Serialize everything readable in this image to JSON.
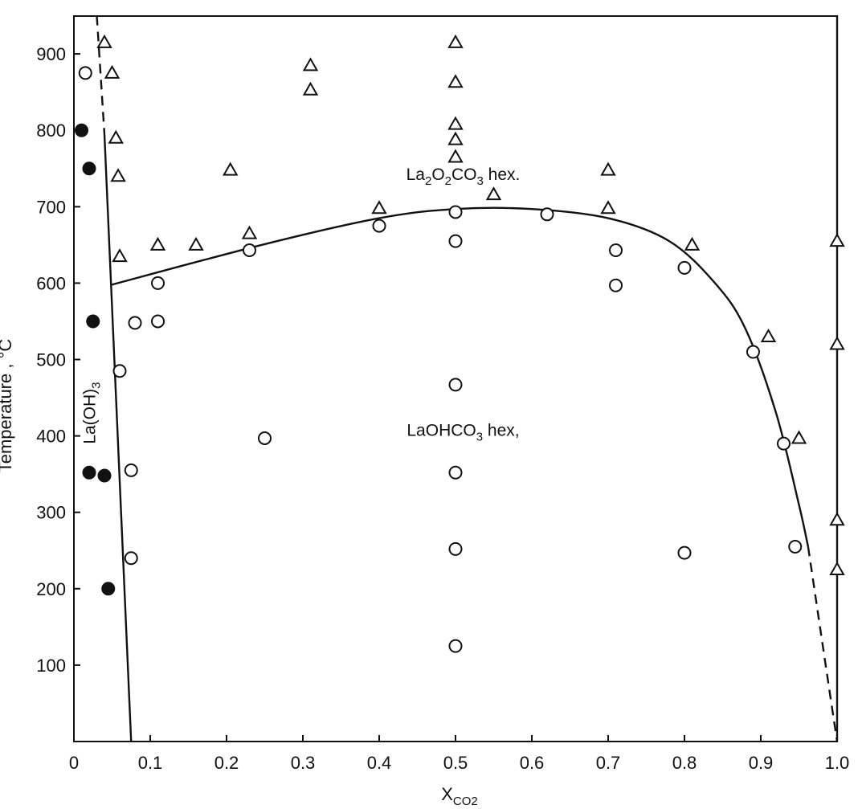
{
  "chart_data": {
    "type": "scatter",
    "xlabel": "X",
    "xlabel_sub": "CO2",
    "ylabel": "Temperature , °C",
    "xlim": [
      0,
      1.0
    ],
    "ylim": [
      0,
      950
    ],
    "x_ticks": [
      "0",
      "0.1",
      "0.2",
      "0.3",
      "0.4",
      "0.5",
      "0.6",
      "0.7",
      "0.8",
      "0.9",
      "1.0"
    ],
    "y_ticks": [
      "100",
      "200",
      "300",
      "400",
      "500",
      "600",
      "700",
      "800",
      "900"
    ],
    "grid": false,
    "annotations": [
      {
        "text_parts": [
          "La",
          "2",
          "O",
          "2",
          "CO",
          "3",
          " hex."
        ],
        "x": 0.51,
        "y": 735
      },
      {
        "text_parts": [
          "LaOHCO",
          "3",
          "  hex,"
        ],
        "x": 0.51,
        "y": 400
      },
      {
        "text_parts": [
          "La(OH)",
          "3"
        ],
        "x": 0.028,
        "y": 430,
        "rotation": -90
      }
    ],
    "series": [
      {
        "marker": "open-triangle",
        "points": [
          [
            0.04,
            915
          ],
          [
            0.05,
            875
          ],
          [
            0.055,
            790
          ],
          [
            0.058,
            740
          ],
          [
            0.06,
            635
          ],
          [
            0.11,
            650
          ],
          [
            0.16,
            650
          ],
          [
            0.205,
            748
          ],
          [
            0.23,
            665
          ],
          [
            0.31,
            885
          ],
          [
            0.31,
            853
          ],
          [
            0.4,
            698
          ],
          [
            0.5,
            915
          ],
          [
            0.5,
            863
          ],
          [
            0.5,
            808
          ],
          [
            0.5,
            788
          ],
          [
            0.5,
            765
          ],
          [
            0.55,
            716
          ],
          [
            0.7,
            748
          ],
          [
            0.7,
            698
          ],
          [
            0.81,
            650
          ],
          [
            0.91,
            530
          ],
          [
            0.95,
            397
          ],
          [
            1.0,
            655
          ],
          [
            1.0,
            520
          ],
          [
            1.0,
            290
          ],
          [
            1.0,
            225
          ]
        ]
      },
      {
        "marker": "open-circle",
        "points": [
          [
            0.015,
            875
          ],
          [
            0.06,
            485
          ],
          [
            0.075,
            355
          ],
          [
            0.075,
            240
          ],
          [
            0.08,
            548
          ],
          [
            0.11,
            600
          ],
          [
            0.11,
            550
          ],
          [
            0.23,
            643
          ],
          [
            0.25,
            397
          ],
          [
            0.4,
            675
          ],
          [
            0.5,
            693
          ],
          [
            0.5,
            655
          ],
          [
            0.5,
            467
          ],
          [
            0.5,
            352
          ],
          [
            0.5,
            252
          ],
          [
            0.5,
            125
          ],
          [
            0.62,
            690
          ],
          [
            0.71,
            643
          ],
          [
            0.71,
            597
          ],
          [
            0.8,
            620
          ],
          [
            0.8,
            247
          ],
          [
            0.89,
            510
          ],
          [
            0.93,
            390
          ],
          [
            0.945,
            255
          ]
        ]
      },
      {
        "marker": "filled-circle",
        "points": [
          [
            0.01,
            800
          ],
          [
            0.02,
            750
          ],
          [
            0.025,
            550
          ],
          [
            0.02,
            352
          ],
          [
            0.04,
            348
          ],
          [
            0.045,
            200
          ]
        ]
      }
    ],
    "boundary_lines": [
      {
        "style": "solid",
        "points": [
          [
            0.04,
            795
          ],
          [
            0.075,
            0
          ]
        ]
      },
      {
        "style": "dashed",
        "points": [
          [
            0.03,
            950
          ],
          [
            0.04,
            795
          ]
        ]
      },
      {
        "style": "solid",
        "points": [
          [
            0.05,
            598
          ],
          [
            0.25,
            651
          ],
          [
            0.4,
            685
          ],
          [
            0.5,
            697
          ],
          [
            0.6,
            697
          ],
          [
            0.7,
            685
          ],
          [
            0.78,
            655
          ],
          [
            0.84,
            600
          ],
          [
            0.88,
            540
          ],
          [
            0.92,
            430
          ],
          [
            0.95,
            310
          ],
          [
            0.962,
            255
          ]
        ]
      },
      {
        "style": "dashed",
        "points": [
          [
            0.962,
            255
          ],
          [
            0.985,
            100
          ],
          [
            1.0,
            0
          ]
        ]
      },
      {
        "style": "solid",
        "points": [
          [
            1.0,
            0
          ],
          [
            1.0,
            950
          ]
        ]
      }
    ]
  }
}
